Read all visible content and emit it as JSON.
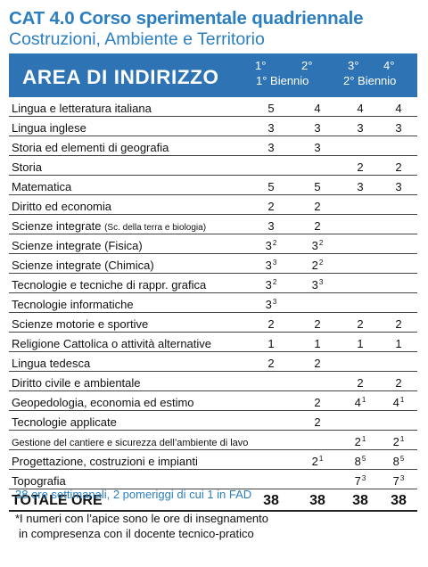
{
  "title_line1": "CAT 4.0 Corso sperimentale quadriennale",
  "title_line2": "Costruzioni, Ambiente e Territorio",
  "header": {
    "area": "AREA DI INDIRIZZO",
    "col1": "1°",
    "col2": "2°",
    "biennio1": "1° Biennio",
    "col3": "3°",
    "col4": "4°",
    "biennio2": "2° Biennio"
  },
  "rows": [
    {
      "subject": "Lingua e letteratura italiana",
      "y1": "5",
      "y2": "4",
      "y3": "4",
      "y4": "4"
    },
    {
      "subject": "Lingua inglese",
      "y1": "3",
      "y2": "3",
      "y3": "3",
      "y4": "3"
    },
    {
      "subject": "Storia ed elementi di geografia",
      "y1": "3",
      "y2": "3",
      "y3": "",
      "y4": ""
    },
    {
      "subject": "Storia",
      "y1": "",
      "y2": "",
      "y3": "2",
      "y4": "2"
    },
    {
      "subject": "Matematica",
      "y1": "5",
      "y2": "5",
      "y3": "3",
      "y4": "3"
    },
    {
      "subject": "Diritto ed economia",
      "y1": "2",
      "y2": "2",
      "y3": "",
      "y4": ""
    },
    {
      "subject": "Scienze integrate",
      "subject_note": "(Sc. della terra e biologia)",
      "y1": "3",
      "y2": "2",
      "y3": "",
      "y4": ""
    },
    {
      "subject": "Scienze integrate (Fisica)",
      "y1": "3",
      "y1_sup": "2",
      "y2": "3",
      "y2_sup": "2",
      "y3": "",
      "y4": ""
    },
    {
      "subject": "Scienze integrate (Chimica)",
      "y1": "3",
      "y1_sup": "3",
      "y2": "2",
      "y2_sup": "2",
      "y3": "",
      "y4": ""
    },
    {
      "subject": "Tecnologie e tecniche di rappr. grafica",
      "y1": "3",
      "y1_sup": "2",
      "y2": "3",
      "y2_sup": "3",
      "y3": "",
      "y4": ""
    },
    {
      "subject": "Tecnologie informatiche",
      "y1": "3",
      "y1_sup": "3",
      "y2": "",
      "y3": "",
      "y4": ""
    },
    {
      "subject": "Scienze motorie e sportive",
      "y1": "2",
      "y2": "2",
      "y3": "2",
      "y4": "2"
    },
    {
      "subject": "Religione Cattolica o attività alternative",
      "y1": "1",
      "y2": "1",
      "y3": "1",
      "y4": "1"
    },
    {
      "subject": "Lingua tedesca",
      "y1": "2",
      "y2": "2",
      "y3": "",
      "y4": ""
    },
    {
      "subject": "Diritto civile e ambientale",
      "y1": "",
      "y2": "",
      "y3": "2",
      "y4": "2"
    },
    {
      "subject": "Geopedologia, economia ed estimo",
      "y1": "",
      "y2": "2",
      "y3": "4",
      "y3_sup": "1",
      "y4": "4",
      "y4_sup": "1"
    },
    {
      "subject": "Tecnologie applicate",
      "y1": "",
      "y2": "2",
      "y3": "",
      "y4": ""
    },
    {
      "subject": "Gestione del cantiere e sicurezza dell’ambiente di lavoro",
      "small": true,
      "y1": "",
      "y2": "",
      "y3": "2",
      "y3_sup": "1",
      "y4": "2",
      "y4_sup": "1"
    },
    {
      "subject": "Progettazione, costruzioni e impianti",
      "y1": "",
      "y2": "2",
      "y2_sup": "1",
      "y3": "8",
      "y3_sup": "5",
      "y4": "8",
      "y4_sup": "5"
    },
    {
      "subject": "Topografia",
      "y1": "",
      "y2": "",
      "y3": "7",
      "y3_sup": "3",
      "y4": "7",
      "y4_sup": "3"
    }
  ],
  "total": {
    "label": "TOTALE ORE",
    "y1": "38",
    "y2": "38",
    "y3": "38",
    "y4": "38"
  },
  "note_hours": "38 ore settimanali, 2 pomeriggi di cui 1 in FAD",
  "footnote_line1": "*I numeri con l’apice sono le ore di insegnamento",
  "footnote_line2": "in compresenza con il docente tecnico-pratico",
  "colors": {
    "accent": "#2b7fc0",
    "header_bg": "#2e74b5"
  }
}
